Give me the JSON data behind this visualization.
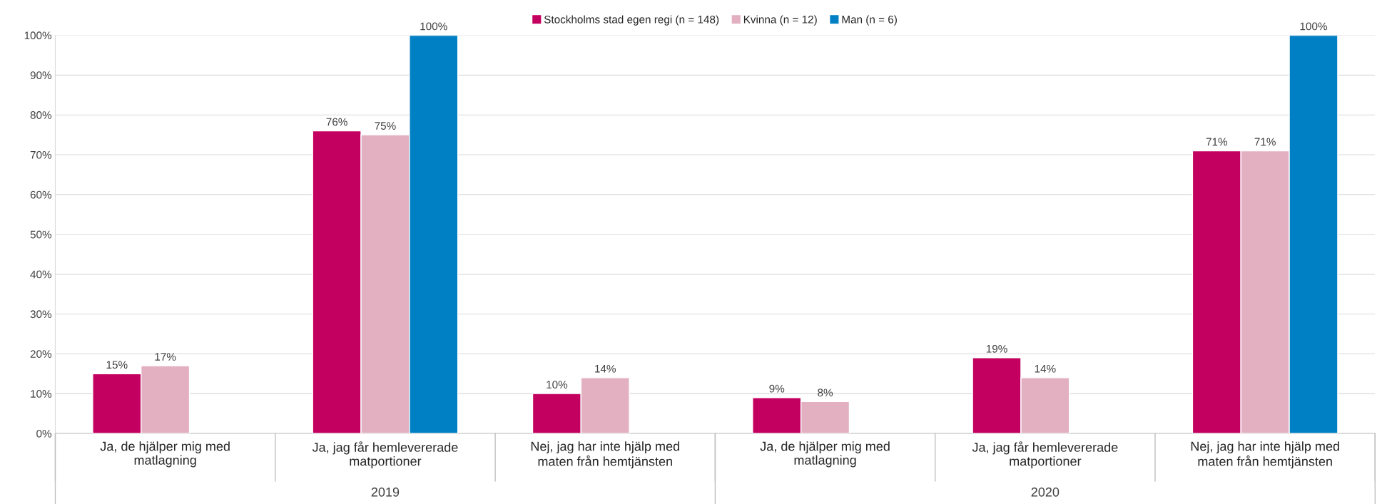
{
  "chart_data": {
    "type": "bar",
    "categories": [
      "Ja, de hjälper mig med\nmatlagning",
      "Ja, jag får hemlevererade\nmatportioner",
      "Nej, jag har inte hjälp med\nmaten från hemtjänsten",
      "Ja, de hjälper mig med\nmatlagning",
      "Ja, jag får hemlevererade\nmatportioner",
      "Nej, jag har inte hjälp med\nmaten från hemtjänsten"
    ],
    "series": [
      {
        "name": "Stockholms stad egen regi (n = 148)",
        "color": "#c3005f",
        "values": [
          15,
          76,
          10,
          9,
          19,
          71
        ],
        "value_labels": [
          "15%",
          "76%",
          "10%",
          "9%",
          "19%",
          "71%"
        ]
      },
      {
        "name": "Kvinna (n = 12)",
        "color": "#e3b0c1",
        "values": [
          17,
          75,
          14,
          8,
          14,
          71
        ],
        "value_labels": [
          "17%",
          "75%",
          "14%",
          "8%",
          "14%",
          "71%"
        ]
      },
      {
        "name": "Man (n = 6)",
        "color": "#0080c4",
        "values": [
          null,
          100,
          null,
          null,
          null,
          100
        ],
        "value_labels": [
          null,
          "100%",
          null,
          null,
          null,
          "100%"
        ]
      }
    ],
    "annotations": [
      "2019",
      "2020"
    ],
    "ylim": [
      0,
      100
    ],
    "yticks": [
      {
        "value": 0,
        "label": "0%"
      },
      {
        "value": 10,
        "label": "10%"
      },
      {
        "value": 20,
        "label": "20%"
      },
      {
        "value": 30,
        "label": "30%"
      },
      {
        "value": 40,
        "label": "40%"
      },
      {
        "value": 50,
        "label": "50%"
      },
      {
        "value": 60,
        "label": "60%"
      },
      {
        "value": 70,
        "label": "70%"
      },
      {
        "value": 80,
        "label": "80%"
      },
      {
        "value": 90,
        "label": "90%"
      },
      {
        "value": 100,
        "label": "100%"
      }
    ],
    "grid": "y",
    "legend": "top"
  }
}
